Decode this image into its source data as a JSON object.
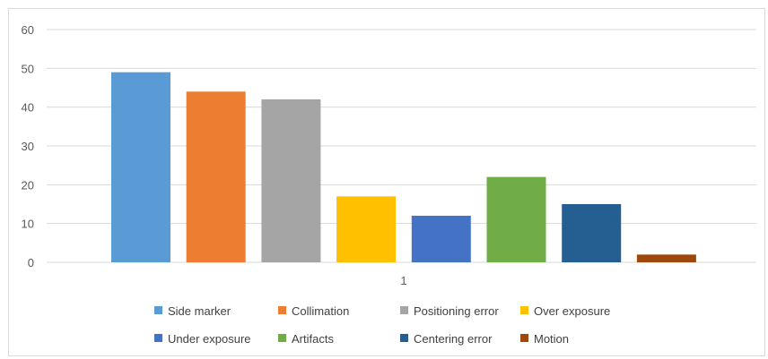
{
  "chart_data": {
    "type": "bar",
    "categories": [
      "1"
    ],
    "ylim": [
      0,
      60
    ],
    "yticks": [
      0,
      10,
      20,
      30,
      40,
      50,
      60
    ],
    "grid": true,
    "legend_position": "bottom",
    "series": [
      {
        "name": "Side marker",
        "values": [
          49
        ],
        "color": "#5b9bd5"
      },
      {
        "name": "Collimation",
        "values": [
          44
        ],
        "color": "#ed7d31"
      },
      {
        "name": "Positioning error",
        "values": [
          42
        ],
        "color": "#a5a5a5"
      },
      {
        "name": "Over exposure",
        "values": [
          17
        ],
        "color": "#ffc000"
      },
      {
        "name": "Under exposure",
        "values": [
          12
        ],
        "color": "#4472c4"
      },
      {
        "name": "Artifacts",
        "values": [
          22
        ],
        "color": "#70ad47"
      },
      {
        "name": "Centering error",
        "values": [
          15
        ],
        "color": "#255e91"
      },
      {
        "name": "Motion",
        "values": [
          2
        ],
        "color": "#9e480e"
      }
    ]
  }
}
